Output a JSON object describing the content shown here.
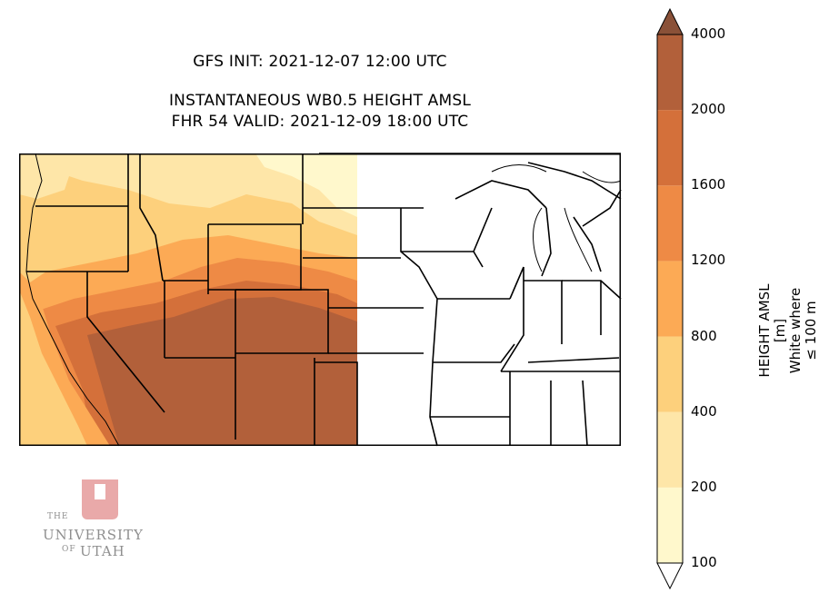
{
  "titles": {
    "init": "GFS INIT: 2021-12-07 12:00 UTC",
    "product": "INSTANTANEOUS WB0.5 HEIGHT AMSL",
    "valid": "FHR 54 VALID: 2021-12-09 18:00 UTC"
  },
  "colorbar": {
    "label_line1": "HEIGHT AMSL [m]",
    "label_line2": "White where ≤ 100 m",
    "levels": [
      "100",
      "200",
      "400",
      "800",
      "1200",
      "1600",
      "2000",
      "4000"
    ],
    "colors": [
      "#fff8cc",
      "#fee6a8",
      "#fdd07c",
      "#fcaa55",
      "#ee8a45",
      "#d4703a",
      "#b2603a"
    ],
    "extend_top_color": "#8a5138"
  },
  "map": {
    "region": "Western & Central United States",
    "fill_colors": {
      "lowest": "#fff8cc",
      "low": "#fee6a8",
      "mid": "#fdd07c",
      "midhigh": "#fcaa55",
      "high": "#ee8a45",
      "higher": "#d4703a",
      "highest": "#b2603a"
    }
  },
  "logo": {
    "the": "THE",
    "university": "UNIVERSITY",
    "of": "OF",
    "utah": "UTAH",
    "letter": "U"
  }
}
